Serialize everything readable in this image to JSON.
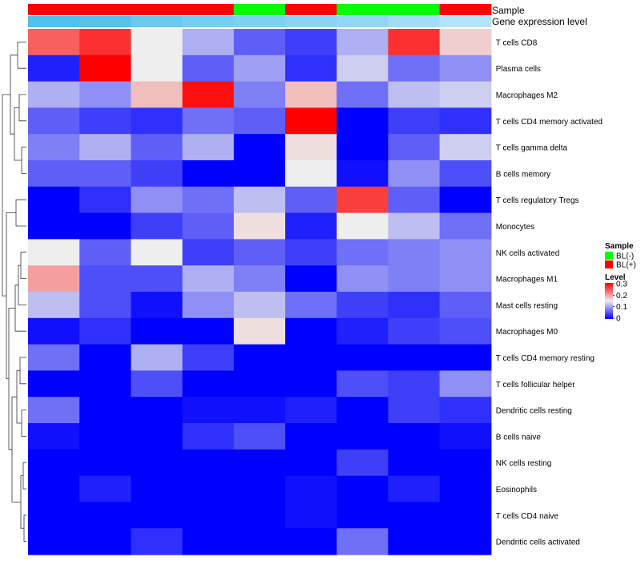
{
  "chart_data": {
    "type": "heatmap",
    "title": "",
    "row_labels": [
      "T cells CD8",
      "Plasma cells",
      "Macrophages M2",
      "T cells CD4 memory activated",
      "T cells gamma delta",
      "B cells memory",
      "T cells regulatory  Tregs",
      "Monocytes",
      "NK cells activated",
      "Macrophages M1",
      "Mast cells resting",
      "Macrophages M0",
      "T cells CD4 memory resting",
      "T cells follicular helper",
      "Dendritic cells resting",
      "B cells naive",
      "NK cells resting",
      "Eosinophils",
      "T cells CD4 naive",
      "Dendritic cells activated"
    ],
    "columns": 9,
    "values": [
      [
        0.24,
        0.27,
        0.15,
        0.11,
        0.06,
        0.04,
        0.11,
        0.27,
        0.17
      ],
      [
        0.02,
        0.3,
        0.15,
        0.06,
        0.1,
        0.03,
        0.13,
        0.07,
        0.09
      ],
      [
        0.11,
        0.09,
        0.18,
        0.29,
        0.08,
        0.18,
        0.07,
        0.12,
        0.13
      ],
      [
        0.06,
        0.04,
        0.03,
        0.07,
        0.06,
        0.31,
        0.0,
        0.04,
        0.03
      ],
      [
        0.08,
        0.11,
        0.06,
        0.11,
        0.0,
        0.16,
        0.0,
        0.06,
        0.13
      ],
      [
        0.06,
        0.06,
        0.04,
        0.0,
        0.0,
        0.15,
        0.01,
        0.09,
        0.05
      ],
      [
        0.0,
        0.03,
        0.09,
        0.07,
        0.12,
        0.06,
        0.26,
        0.06,
        0.0
      ],
      [
        0.0,
        0.0,
        0.04,
        0.06,
        0.16,
        0.02,
        0.15,
        0.12,
        0.07
      ],
      [
        0.15,
        0.06,
        0.15,
        0.04,
        0.06,
        0.04,
        0.07,
        0.08,
        0.09
      ],
      [
        0.2,
        0.05,
        0.05,
        0.11,
        0.08,
        0.0,
        0.09,
        0.08,
        0.09
      ],
      [
        0.12,
        0.05,
        0.01,
        0.09,
        0.12,
        0.07,
        0.04,
        0.03,
        0.06
      ],
      [
        0.01,
        0.03,
        0.0,
        0.0,
        0.16,
        0.0,
        0.02,
        0.04,
        0.05
      ],
      [
        0.07,
        0.0,
        0.11,
        0.04,
        0.0,
        0.0,
        0.0,
        0.0,
        0.0
      ],
      [
        0.0,
        0.0,
        0.05,
        0.0,
        0.0,
        0.0,
        0.05,
        0.04,
        0.09
      ],
      [
        0.07,
        0.0,
        0.0,
        0.01,
        0.01,
        0.02,
        0.0,
        0.04,
        0.03
      ],
      [
        0.01,
        0.0,
        0.0,
        0.03,
        0.05,
        0.0,
        0.0,
        0.0,
        0.01
      ],
      [
        0.0,
        0.0,
        0.0,
        0.0,
        0.0,
        0.0,
        0.04,
        0.0,
        0.0
      ],
      [
        0.0,
        0.02,
        0.0,
        0.0,
        0.0,
        0.01,
        0.0,
        0.02,
        0.0
      ],
      [
        0.0,
        0.0,
        0.0,
        0.0,
        0.0,
        0.01,
        0.0,
        0.0,
        0.0
      ],
      [
        0.0,
        0.0,
        0.03,
        0.0,
        0.0,
        0.0,
        0.07,
        0.0,
        0.0
      ]
    ],
    "color_scale": {
      "name": "Level",
      "min": 0,
      "max": 0.3,
      "ticks": [
        "0.3",
        "0.2",
        "0.1",
        "0"
      ],
      "low_color": "#0000ff",
      "mid_color": "#eeeeee",
      "high_color": "#ff0000"
    },
    "annotation_rows": [
      {
        "name": "Sample",
        "values": [
          "BL(+)",
          "BL(+)",
          "BL(+)",
          "BL(+)",
          "BL(-)",
          "BL(+)",
          "BL(-)",
          "BL(-)",
          "BL(+)"
        ]
      },
      {
        "name": "Gene expression level",
        "values": [
          0.95,
          0.92,
          0.8,
          0.72,
          0.66,
          0.6,
          0.55,
          0.45,
          0.35
        ]
      }
    ],
    "legend": {
      "title": "Sample",
      "entries": [
        {
          "label": "BL(-)",
          "color": "#00ff00"
        },
        {
          "label": "BL(+)",
          "color": "#ff0000"
        }
      ],
      "placement": "right"
    },
    "row_dendrogram": true
  }
}
